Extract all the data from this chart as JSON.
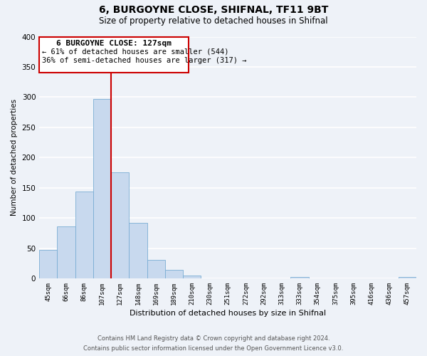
{
  "title": "6, BURGOYNE CLOSE, SHIFNAL, TF11 9BT",
  "subtitle": "Size of property relative to detached houses in Shifnal",
  "xlabel": "Distribution of detached houses by size in Shifnal",
  "ylabel": "Number of detached properties",
  "bar_color": "#c8d9ee",
  "bar_edge_color": "#7aadd4",
  "bin_labels": [
    "45sqm",
    "66sqm",
    "86sqm",
    "107sqm",
    "127sqm",
    "148sqm",
    "169sqm",
    "189sqm",
    "210sqm",
    "230sqm",
    "251sqm",
    "272sqm",
    "292sqm",
    "313sqm",
    "333sqm",
    "354sqm",
    "375sqm",
    "395sqm",
    "416sqm",
    "436sqm",
    "457sqm"
  ],
  "bar_heights": [
    47,
    86,
    144,
    297,
    175,
    92,
    30,
    14,
    5,
    0,
    0,
    0,
    0,
    0,
    2,
    0,
    0,
    0,
    0,
    0,
    2
  ],
  "ylim": [
    0,
    400
  ],
  "yticks": [
    0,
    50,
    100,
    150,
    200,
    250,
    300,
    350,
    400
  ],
  "property_label": "6 BURGOYNE CLOSE: 127sqm",
  "annotation_line1": "← 61% of detached houses are smaller (544)",
  "annotation_line2": "36% of semi-detached houses are larger (317) →",
  "vline_color": "#cc0000",
  "vline_x": 3.5,
  "box_color": "#ffffff",
  "box_edge_color": "#cc0000",
  "footer_line1": "Contains HM Land Registry data © Crown copyright and database right 2024.",
  "footer_line2": "Contains public sector information licensed under the Open Government Licence v3.0.",
  "background_color": "#eef2f8",
  "grid_color": "#ffffff"
}
